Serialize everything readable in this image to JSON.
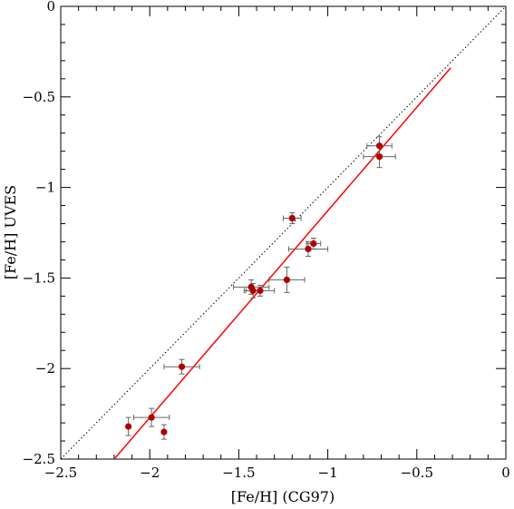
{
  "chart_data": {
    "type": "scatter",
    "title": "",
    "xlabel": "[Fe/H] (CG97)",
    "ylabel": "[Fe/H] UVES",
    "xlim": [
      -2.5,
      0
    ],
    "ylim": [
      -2.5,
      0
    ],
    "x_ticks": [
      -2.5,
      -2,
      -1.5,
      -1,
      -0.5,
      0
    ],
    "y_ticks": [
      -2.5,
      -2,
      -1.5,
      -1,
      -0.5,
      0
    ],
    "x_tick_labels": [
      "−2.5",
      "−2",
      "−1.5",
      "−1",
      "−0.5",
      "0"
    ],
    "y_tick_labels": [
      "−2.5",
      "−2",
      "−1.5",
      "−1",
      "−0.5",
      "0"
    ],
    "grid": false,
    "legend": "none",
    "point_color": "#b00000",
    "errorbar_color": "#666666",
    "fit_line_color": "#ff0000",
    "points": [
      {
        "x": -2.12,
        "y": -2.32,
        "xerr": 0.0,
        "yerr": 0.05
      },
      {
        "x": -1.99,
        "y": -2.27,
        "xerr": 0.1,
        "yerr": 0.05
      },
      {
        "x": -1.92,
        "y": -2.35,
        "xerr": 0.0,
        "yerr": 0.04
      },
      {
        "x": -1.82,
        "y": -1.99,
        "xerr": 0.1,
        "yerr": 0.04
      },
      {
        "x": -1.43,
        "y": -1.55,
        "xerr": 0.1,
        "yerr": 0.04
      },
      {
        "x": -1.42,
        "y": -1.57,
        "xerr": 0.05,
        "yerr": 0.04
      },
      {
        "x": -1.38,
        "y": -1.57,
        "xerr": 0.08,
        "yerr": 0.03
      },
      {
        "x": -1.23,
        "y": -1.51,
        "xerr": 0.1,
        "yerr": 0.07
      },
      {
        "x": -1.2,
        "y": -1.17,
        "xerr": 0.05,
        "yerr": 0.03
      },
      {
        "x": -1.11,
        "y": -1.34,
        "xerr": 0.11,
        "yerr": 0.04
      },
      {
        "x": -1.08,
        "y": -1.31,
        "xerr": 0.04,
        "yerr": 0.03
      },
      {
        "x": -0.71,
        "y": -0.77,
        "xerr": 0.07,
        "yerr": 0.05
      },
      {
        "x": -0.71,
        "y": -0.83,
        "xerr": 0.09,
        "yerr": 0.06
      }
    ],
    "fit_line": {
      "x": [
        -2.2,
        -0.31
      ],
      "y": [
        -2.5,
        -0.34
      ]
    },
    "identity_line": {
      "x": [
        -2.5,
        0
      ],
      "y": [
        -2.5,
        0
      ]
    }
  }
}
